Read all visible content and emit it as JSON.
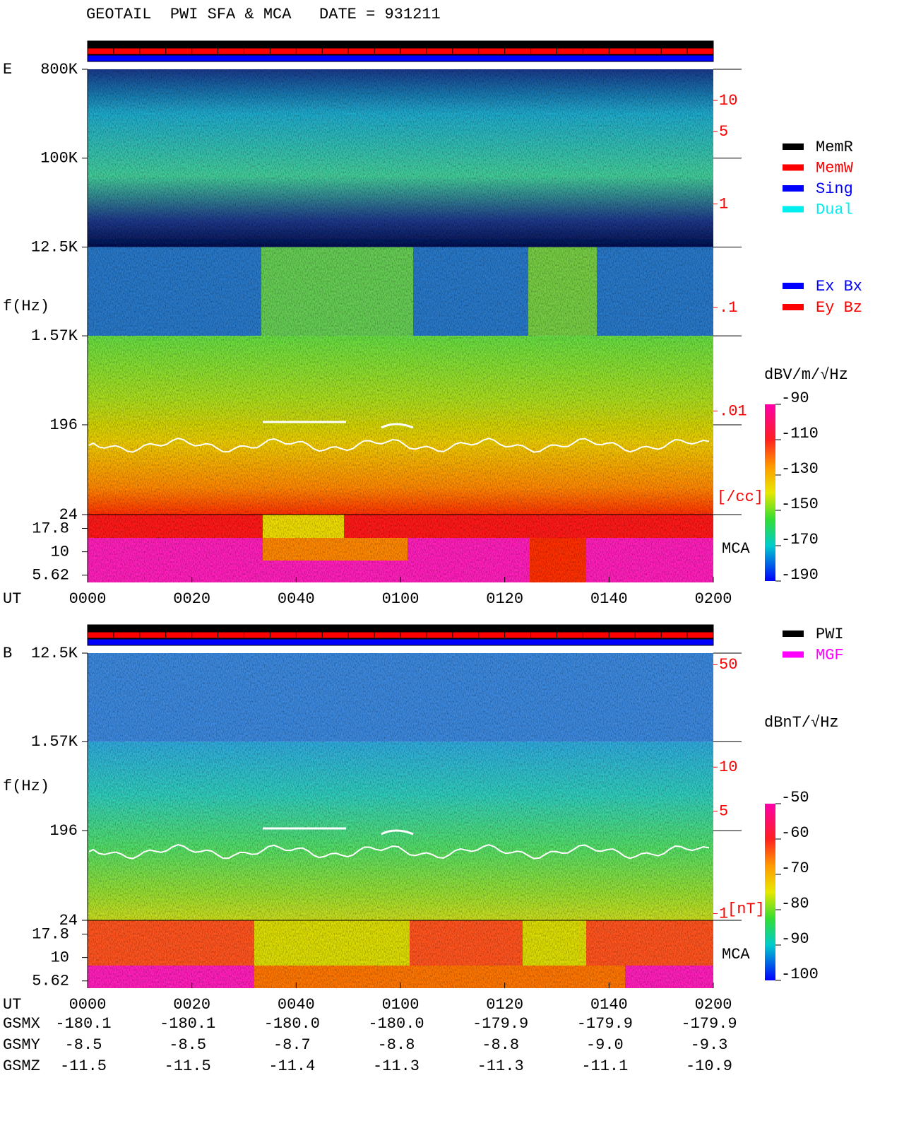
{
  "title": "GEOTAIL  PWI SFA & MCA   DATE = 931211",
  "chart_data": [
    {
      "type": "spectrogram",
      "component": "E",
      "y_label": "f(Hz)",
      "x_label": "UT",
      "categories": [
        "0000",
        "0020",
        "0040",
        "0100",
        "0120",
        "0140",
        "0200"
      ],
      "log": true,
      "ylim": [
        24,
        800000
      ],
      "yticks": [
        {
          "value": 800000,
          "label": "800K"
        },
        {
          "value": 100000,
          "label": "100K"
        },
        {
          "value": 12500,
          "label": "12.5K"
        },
        {
          "value": 1570,
          "label": "1.57K"
        },
        196,
        24
      ],
      "mca_label": "MCA",
      "mca_ylim": [
        4.7,
        25
      ],
      "mca_yticks": [
        17.8,
        10,
        5.62
      ],
      "y2lim": [
        0.001,
        20
      ],
      "y2ticks": [
        10,
        5,
        1,
        {
          "value": 0.1,
          "label": ".1"
        },
        {
          "value": 0.01,
          "label": ".01"
        }
      ],
      "y2_unit": "[/cc]",
      "status_legend": [
        {
          "name": "MemR",
          "color": "#000000"
        },
        {
          "name": "MemW",
          "color": "#ff0000"
        },
        {
          "name": "Sing",
          "color": "#0000ff"
        },
        {
          "name": "Dual",
          "color": "#00eeee"
        }
      ],
      "component_legend": [
        {
          "name": "Ex Bx",
          "color": "#0000ff"
        },
        {
          "name": "Ey Bz",
          "color": "#ff0000"
        }
      ],
      "colorbar": {
        "label": "dBV/m/√Hz",
        "ylim": [
          -190,
          -90
        ],
        "ticks": [
          -90,
          -110,
          -130,
          -150,
          -170,
          -190
        ]
      }
    },
    {
      "type": "spectrogram",
      "component": "B",
      "y_label": "f(Hz)",
      "x_label": "UT",
      "categories": [
        "0000",
        "0020",
        "0040",
        "0100",
        "0120",
        "0140",
        "0200"
      ],
      "log": true,
      "ylim": [
        24,
        12500
      ],
      "yticks": [
        {
          "value": 12500,
          "label": "12.5K"
        },
        {
          "value": 1570,
          "label": "1.57K"
        },
        196,
        24
      ],
      "mca_label": "MCA",
      "mca_ylim": [
        4.7,
        25
      ],
      "mca_yticks": [
        17.8,
        10,
        5.62
      ],
      "y2lim": [
        0.9,
        60
      ],
      "y2ticks": [
        50,
        10,
        5,
        1
      ],
      "y2_unit": "[nT]",
      "status_legend": [
        {
          "name": "PWI",
          "color": "#000000"
        },
        {
          "name": "MGF",
          "color": "#ff00ff"
        }
      ],
      "colorbar": {
        "label": "dBnT/√Hz",
        "ylim": [
          -100,
          -50
        ],
        "ticks": [
          -50,
          -60,
          -70,
          -80,
          -90,
          -100
        ]
      }
    }
  ],
  "orbit": {
    "rows": [
      {
        "label": "GSMX",
        "values": [
          "-180.1",
          "-180.1",
          "-180.0",
          "-180.0",
          "-179.9",
          "-179.9",
          "-179.9"
        ]
      },
      {
        "label": "GSMY",
        "values": [
          "-8.5",
          "-8.5",
          "-8.7",
          "-8.8",
          "-8.8",
          "-9.0",
          "-9.3"
        ]
      },
      {
        "label": "GSMZ",
        "values": [
          "-11.5",
          "-11.5",
          "-11.4",
          "-11.3",
          "-11.3",
          "-11.1",
          "-10.9"
        ]
      }
    ]
  }
}
